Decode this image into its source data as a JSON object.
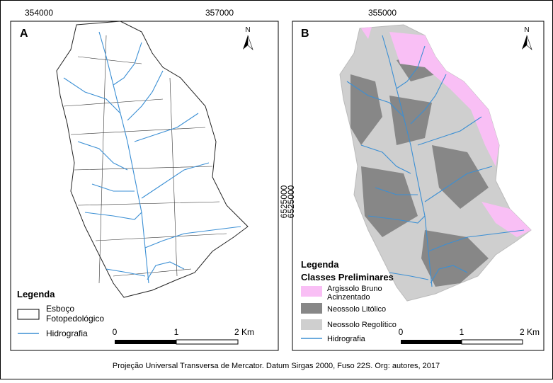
{
  "panel_a": {
    "letter": "A",
    "north": "N",
    "x_coords": [
      "354000",
      "357000"
    ],
    "y_coord": "6525000",
    "legend": {
      "title": "Legenda",
      "items": [
        [
          "Esboço",
          "Fotopedológico"
        ],
        [
          "Hidrografia"
        ]
      ]
    },
    "scale": [
      "0",
      "1",
      "2 Km"
    ]
  },
  "panel_b": {
    "letter": "B",
    "north": "N",
    "x_coords": [
      "355000"
    ],
    "y_coord": "6525000",
    "legend": {
      "title": "Legenda",
      "subtitle": "Classes Preliminares",
      "items": [
        [
          "Argissolo Bruno",
          "Acinzentado"
        ],
        [
          "Neossolo Litólico"
        ],
        [
          "Neossolo Regolítico"
        ],
        [
          "Hidrografia"
        ]
      ]
    },
    "scale": [
      "0",
      "1",
      "2 Km"
    ]
  },
  "caption": "Projeção Universal Transversa de Mercator. Datum Sirgas 2000, Fuso 22S. Org: autores, 2017"
}
